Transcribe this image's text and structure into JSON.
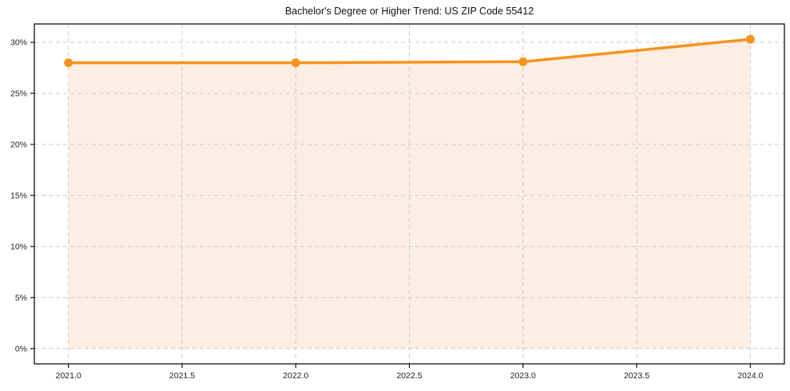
{
  "chart_data": {
    "type": "area",
    "title": "Bachelor's Degree or Higher Trend: US ZIP Code 55412",
    "x": [
      2021,
      2022,
      2023,
      2024
    ],
    "values": [
      28.0,
      28.0,
      28.1,
      30.3
    ],
    "fill_to_zero": true,
    "x_ticks": [
      2021.0,
      2021.5,
      2022.0,
      2022.5,
      2023.0,
      2023.5,
      2024.0
    ],
    "x_tick_labels": [
      "2021.0",
      "2021.5",
      "2022.0",
      "2022.5",
      "2023.0",
      "2023.5",
      "2024.0"
    ],
    "y_ticks": [
      0,
      5,
      10,
      15,
      20,
      25,
      30
    ],
    "y_tick_labels": [
      "0%",
      "5%",
      "10%",
      "15%",
      "20%",
      "25%",
      "30%"
    ],
    "xlim": [
      2020.85,
      2024.15
    ],
    "ylim": [
      -1.5,
      31.8
    ],
    "grid": true,
    "grid_style": "dashed",
    "legend": false,
    "xlabel": "",
    "ylabel": "",
    "colors": {
      "line": "#f7941d",
      "fill": "#fbefe3",
      "grid": "#c9c9c9",
      "spine": "#111111",
      "text": "#222222",
      "background": "#ffffff"
    }
  }
}
